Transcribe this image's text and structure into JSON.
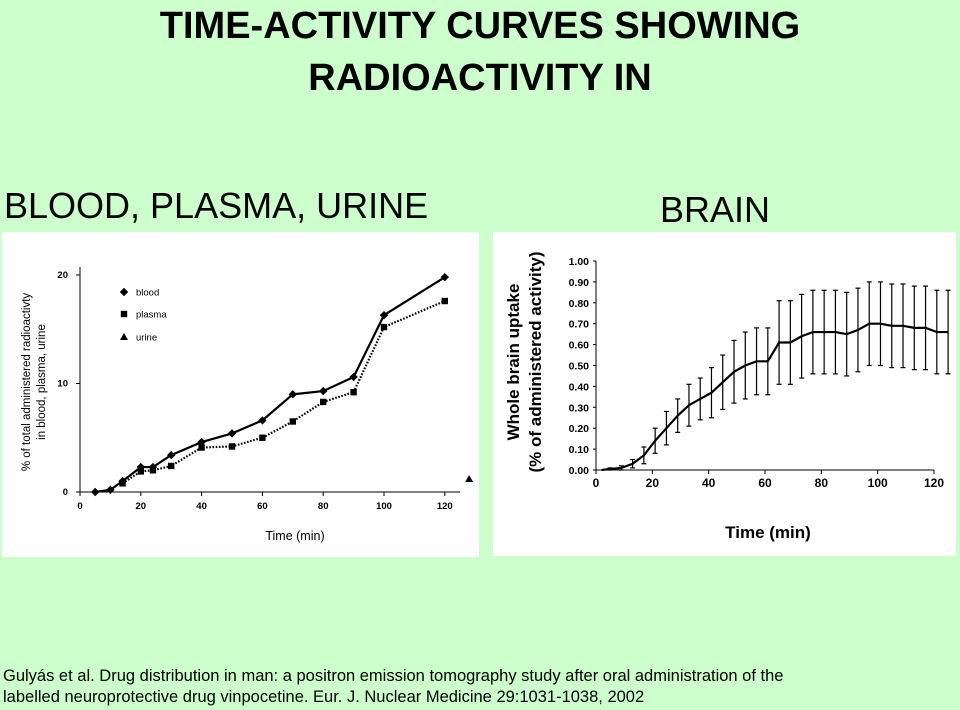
{
  "slide": {
    "title_line1": "TIME-ACTIVITY CURVES SHOWING",
    "title_line2": "RADIOACTIVITY IN",
    "left_label": "BLOOD, PLASMA, URINE",
    "right_label": "BRAIN",
    "citation_line1": "Gulyás et al. Drug distribution in man: a positron emission tomography study after oral administration of the",
    "citation_line2": "labelled neuroprotective drug vinpocetine. Eur. J. Nuclear Medicine 29:1031-1038, 2002"
  },
  "chart_data": [
    {
      "type": "line",
      "ylabel_line1": "% of total administered radioactivty",
      "ylabel_line2": "in blood, plasma, urine",
      "xlabel": "Time (min)",
      "xlim": [
        0,
        125
      ],
      "ylim": [
        0,
        20
      ],
      "xticks": [
        "0",
        "20",
        "40",
        "60",
        "80",
        "100",
        "120"
      ],
      "yticks": [
        "0",
        "10",
        "20"
      ],
      "legend": [
        "blood",
        "plasma",
        "urine"
      ],
      "legend_position": "top-left",
      "series": [
        {
          "name": "blood",
          "marker": "diamond",
          "line": "solid",
          "x": [
            5,
            10,
            14,
            20,
            24,
            30,
            40,
            50,
            60,
            70,
            80,
            90,
            100,
            120
          ],
          "y": [
            0,
            0.2,
            1,
            2.3,
            2.3,
            3.4,
            4.6,
            5.4,
            6.6,
            9,
            9.3,
            10.6,
            16.3,
            19.8
          ]
        },
        {
          "name": "plasma",
          "marker": "square",
          "line": "dotted",
          "x": [
            14,
            20,
            24,
            30,
            40,
            50,
            60,
            70,
            80,
            90,
            100,
            120
          ],
          "y": [
            0.8,
            1.9,
            2,
            2.4,
            4.1,
            4.2,
            5,
            6.5,
            8.3,
            9.2,
            15.2,
            17.6
          ]
        },
        {
          "name": "urine",
          "marker": "triangle",
          "line": "none",
          "x": [
            128
          ],
          "y": [
            1.2
          ]
        }
      ]
    },
    {
      "type": "line",
      "ylabel_line1": "Whole brain uptake",
      "ylabel_line2": "(% of administered activity)",
      "xlabel": "Time (min)",
      "xlim": [
        0,
        120
      ],
      "ylim": [
        0,
        1.0
      ],
      "xticks": [
        "0",
        "20",
        "40",
        "60",
        "80",
        "100",
        "120"
      ],
      "yticks": [
        "0.00",
        "0.10",
        "0.20",
        "0.30",
        "0.40",
        "0.50",
        "0.60",
        "0.70",
        "0.80",
        "0.90",
        "1.00"
      ],
      "series": [
        {
          "x": [
            2,
            5,
            9,
            13,
            17,
            21,
            25,
            29,
            33,
            37,
            41,
            45,
            49,
            53,
            57,
            61,
            65,
            69,
            73,
            77,
            81,
            85,
            89,
            93,
            97,
            101,
            105,
            109,
            113,
            117,
            121,
            125
          ],
          "y": [
            0,
            0.005,
            0.01,
            0.03,
            0.07,
            0.14,
            0.2,
            0.26,
            0.31,
            0.34,
            0.37,
            0.42,
            0.47,
            0.5,
            0.52,
            0.52,
            0.61,
            0.61,
            0.64,
            0.66,
            0.66,
            0.66,
            0.65,
            0.67,
            0.7,
            0.7,
            0.69,
            0.69,
            0.68,
            0.68,
            0.66,
            0.66
          ],
          "err": [
            0,
            0.005,
            0.01,
            0.02,
            0.04,
            0.06,
            0.08,
            0.08,
            0.1,
            0.1,
            0.12,
            0.13,
            0.15,
            0.16,
            0.16,
            0.16,
            0.2,
            0.2,
            0.2,
            0.2,
            0.2,
            0.2,
            0.2,
            0.2,
            0.2,
            0.2,
            0.2,
            0.2,
            0.2,
            0.2,
            0.2,
            0.2
          ]
        }
      ]
    }
  ]
}
